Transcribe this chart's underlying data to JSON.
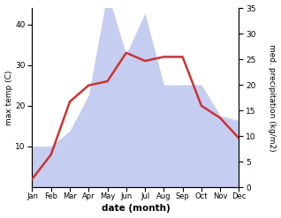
{
  "months": [
    "Jan",
    "Feb",
    "Mar",
    "Apr",
    "May",
    "Jun",
    "Jul",
    "Aug",
    "Sep",
    "Oct",
    "Nov",
    "Dec"
  ],
  "max_temp": [
    2,
    8,
    21,
    25,
    26,
    33,
    31,
    32,
    32,
    20,
    17,
    12
  ],
  "precipitation": [
    8,
    8,
    11,
    18,
    38,
    26,
    34,
    20,
    20,
    20,
    14,
    13
  ],
  "temp_color": "#cc3333",
  "precip_color": "#c5cef0",
  "ylabel_left": "max temp (C)",
  "ylabel_right": "med. precipitation (kg/m2)",
  "xlabel": "date (month)",
  "ylim_left": [
    0,
    44
  ],
  "ylim_right": [
    0,
    35
  ],
  "yticks_left": [
    10,
    20,
    30,
    40
  ],
  "yticks_right": [
    0,
    5,
    10,
    15,
    20,
    25,
    30,
    35
  ],
  "bg_color": "#ffffff",
  "line_width": 1.8
}
